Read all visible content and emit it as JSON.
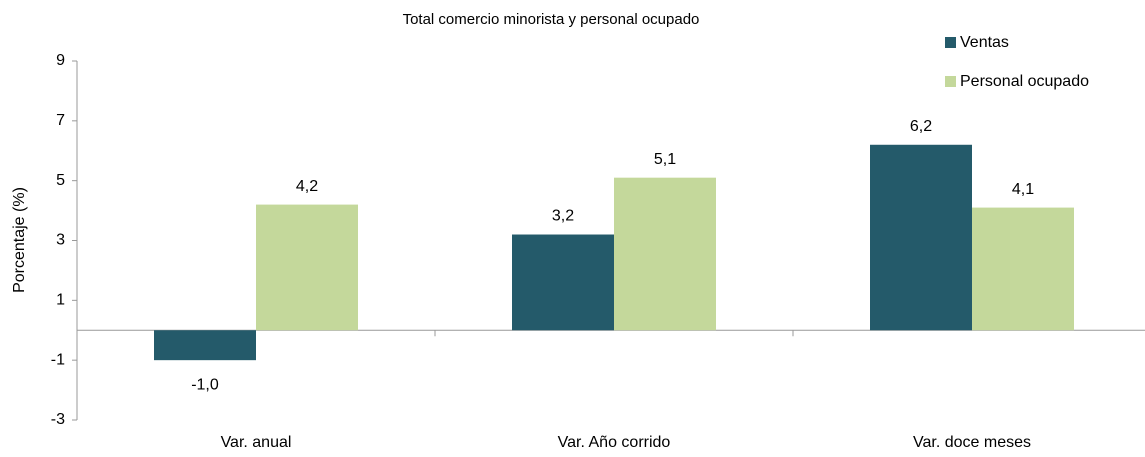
{
  "chart_data": {
    "type": "bar",
    "title": "Total comercio minorista y personal ocupado",
    "y_label": "Porcentaje (%)",
    "categories": [
      "Var. anual",
      "Var. Año corrido",
      "Var. doce meses"
    ],
    "series": [
      {
        "name": "Ventas",
        "color": "#245a6a",
        "values": [
          -1.0,
          3.2,
          6.2
        ],
        "value_labels": [
          "-1,0",
          "3,2",
          "6,2"
        ]
      },
      {
        "name": "Personal ocupado",
        "color": "#c4d89b",
        "values": [
          4.2,
          5.1,
          4.1
        ],
        "value_labels": [
          "4,2",
          "5,1",
          "4,1"
        ]
      }
    ],
    "ylim": [
      -3,
      9
    ],
    "yticks": [
      9,
      7,
      5,
      3,
      1,
      -1,
      -3
    ],
    "grid": false,
    "legend": "top-right"
  }
}
